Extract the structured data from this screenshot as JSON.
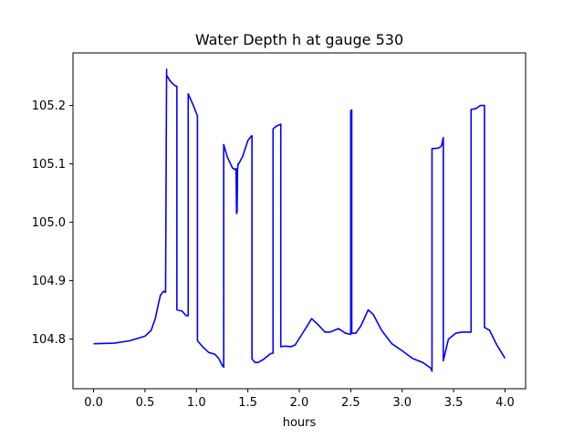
{
  "chart_data": {
    "type": "line",
    "title": "Water Depth h at gauge 530",
    "xlabel": "hours",
    "ylabel": "",
    "xlim": [
      -0.2,
      4.2
    ],
    "ylim": [
      104.715,
      105.29
    ],
    "xticks": [
      0.0,
      0.5,
      1.0,
      1.5,
      2.0,
      2.5,
      3.0,
      3.5,
      4.0
    ],
    "xtick_labels": [
      "0.0",
      "0.5",
      "1.0",
      "1.5",
      "2.0",
      "2.5",
      "3.0",
      "3.5",
      "4.0"
    ],
    "yticks": [
      104.8,
      104.9,
      105.0,
      105.1,
      105.2
    ],
    "ytick_labels": [
      "104.8",
      "104.9",
      "105.0",
      "105.1",
      "105.2"
    ],
    "grid": false,
    "legend": "none",
    "series": [
      {
        "color": "#0000ff",
        "x": [
          0.0,
          0.2,
          0.35,
          0.5,
          0.56,
          0.6,
          0.63,
          0.65,
          0.68,
          0.7,
          0.71,
          0.71,
          0.74,
          0.77,
          0.8,
          0.81,
          0.81,
          0.86,
          0.9,
          0.92,
          0.92,
          0.97,
          1.01,
          1.01,
          1.06,
          1.12,
          1.18,
          1.22,
          1.25,
          1.265,
          1.265,
          1.3,
          1.35,
          1.38,
          1.385,
          1.39,
          1.395,
          1.4,
          1.405,
          1.41,
          1.45,
          1.5,
          1.535,
          1.54,
          1.54,
          1.57,
          1.6,
          1.65,
          1.72,
          1.745,
          1.745,
          1.78,
          1.82,
          1.82,
          1.86,
          1.92,
          1.96,
          2.05,
          2.12,
          2.18,
          2.25,
          2.3,
          2.38,
          2.45,
          2.5,
          2.5,
          2.505,
          2.51,
          2.51,
          2.55,
          2.6,
          2.67,
          2.72,
          2.8,
          2.9,
          3.0,
          3.1,
          3.2,
          3.28,
          3.29,
          3.29,
          3.35,
          3.38,
          3.4,
          3.4,
          3.45,
          3.52,
          3.58,
          3.65,
          3.67,
          3.67,
          3.72,
          3.76,
          3.8,
          3.8,
          3.85,
          3.92,
          4.0
        ],
        "y": [
          104.792,
          104.793,
          104.797,
          104.805,
          104.815,
          104.835,
          104.86,
          104.875,
          104.882,
          104.88,
          105.262,
          105.252,
          105.243,
          105.237,
          105.233,
          105.233,
          104.85,
          104.848,
          104.84,
          104.84,
          105.22,
          105.2,
          105.182,
          104.797,
          104.787,
          104.777,
          104.774,
          104.766,
          104.755,
          104.752,
          105.133,
          105.112,
          105.093,
          105.09,
          105.092,
          105.015,
          105.018,
          105.09,
          105.1,
          105.1,
          105.113,
          105.14,
          105.148,
          105.148,
          104.766,
          104.76,
          104.76,
          104.765,
          104.775,
          104.776,
          105.16,
          105.165,
          105.168,
          104.787,
          104.788,
          104.787,
          104.79,
          104.815,
          104.835,
          104.825,
          104.812,
          104.812,
          104.818,
          104.81,
          104.808,
          105.19,
          105.192,
          105.192,
          104.81,
          104.81,
          104.823,
          104.85,
          104.842,
          104.815,
          104.792,
          104.78,
          104.767,
          104.76,
          104.75,
          104.745,
          105.126,
          105.127,
          105.13,
          105.145,
          104.763,
          104.8,
          104.81,
          104.812,
          104.812,
          104.812,
          105.193,
          105.195,
          105.2,
          105.2,
          104.82,
          104.815,
          104.79,
          104.767
        ]
      }
    ]
  }
}
